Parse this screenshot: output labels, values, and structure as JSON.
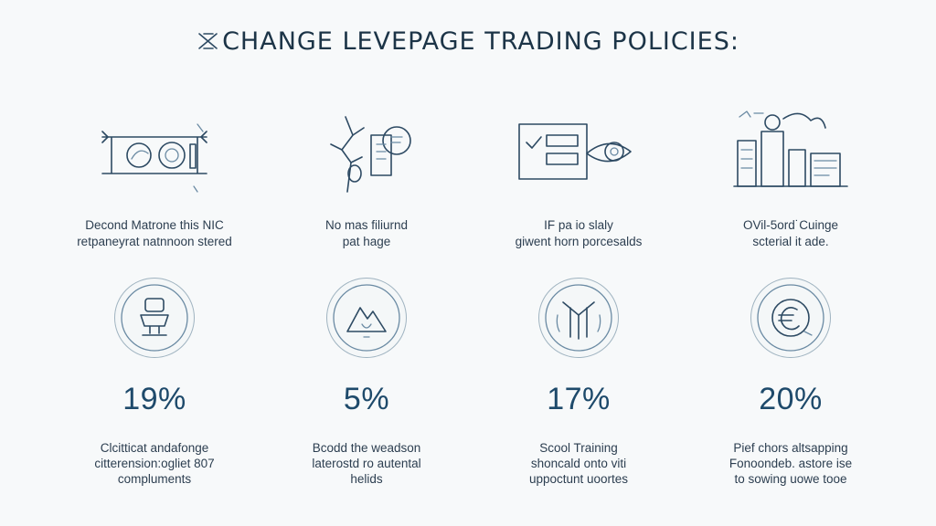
{
  "title": "CHANGE LEVEPAGE TRADING POLICIES:",
  "columns": [
    {
      "illustration": "balance-icon",
      "top_lines": [
        "Decond Matrone this NIC",
        "retpaneyrat natnnoon stered"
      ],
      "badge_icon": "stamp-icon",
      "percent": "19%",
      "bottom_lines": [
        "Clcitticat andafonge",
        "citterension:ogliet 807",
        "compluments"
      ]
    },
    {
      "illustration": "plant-document-icon",
      "top_lines": [
        "No mas filiurnd",
        "pat hage"
      ],
      "badge_icon": "mountain-icon",
      "percent": "5%",
      "bottom_lines": [
        "Bcodd the weadson",
        "laterostd ro autental",
        "helids"
      ]
    },
    {
      "illustration": "checklist-eye-icon",
      "top_lines": [
        "IF pa io slaly",
        "giwent horn porcesalds"
      ],
      "badge_icon": "monogram-icon",
      "percent": "17%",
      "bottom_lines": [
        "Scool Training",
        "shoncald onto viti",
        "uppoctunt uoortes"
      ]
    },
    {
      "illustration": "city-scene-icon",
      "top_lines": [
        "OVil-5ord˙Cuinge",
        "scterial it ade."
      ],
      "badge_icon": "euro-coin-icon",
      "percent": "20%",
      "bottom_lines": [
        "Pief chors altsapping",
        "Fonoondeb. astore ise",
        "to sowing uowe tooe"
      ]
    }
  ]
}
